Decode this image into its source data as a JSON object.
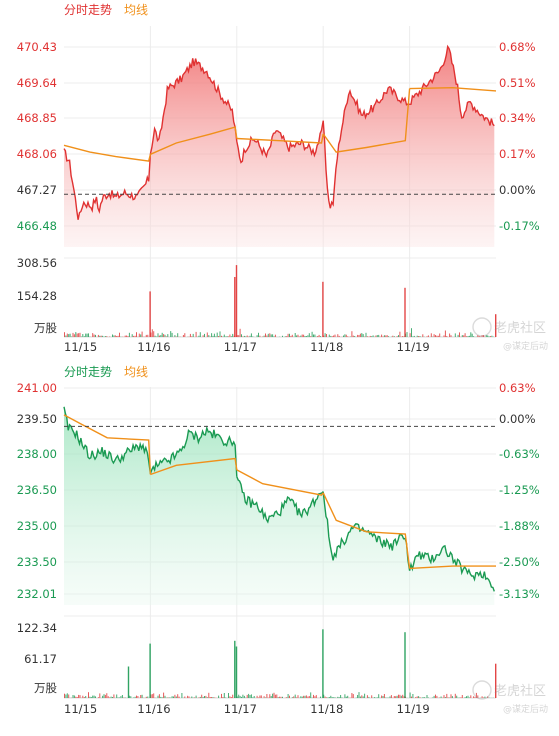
{
  "colors": {
    "up": "#e03232",
    "down": "#1a9a52",
    "avg": "#f0901a",
    "grid": "#ececec",
    "dash": "#444444",
    "text": "#333333"
  },
  "legend": {
    "price": "分时走势",
    "avg": "均线"
  },
  "vol_unit": "万股",
  "dates": [
    "11/15",
    "11/16",
    "11/17",
    "11/18",
    "11/19"
  ],
  "watermark": {
    "main": "老虎社区",
    "sub": "@谋定后动"
  },
  "chart_data": [
    {
      "type": "line",
      "trend": "up",
      "y_ticks_left": [
        "470.43",
        "469.64",
        "468.85",
        "468.06",
        "467.27",
        "466.48"
      ],
      "y_ticks_right": [
        "0.68%",
        "0.51%",
        "0.34%",
        "0.17%",
        "0.00%",
        "-0.17%"
      ],
      "vol_ticks": [
        "308.56",
        "154.28"
      ],
      "ylim": [
        466.48,
        470.43
      ],
      "base": 467.27,
      "x": [
        "11/15",
        "11/16",
        "11/17",
        "11/18",
        "11/19"
      ],
      "price_keypoints": [
        [
          0.0,
          468.2
        ],
        [
          0.06,
          468.0
        ],
        [
          0.12,
          467.3
        ],
        [
          0.17,
          466.7
        ],
        [
          0.22,
          467.1
        ],
        [
          0.33,
          467.0
        ],
        [
          0.37,
          467.2
        ],
        [
          0.4,
          466.9
        ],
        [
          0.45,
          467.2
        ],
        [
          0.52,
          467.3
        ],
        [
          0.6,
          467.2
        ],
        [
          0.7,
          467.3
        ],
        [
          0.85,
          467.2
        ],
        [
          0.98,
          467.6
        ],
        [
          1.0,
          468.2
        ],
        [
          1.05,
          468.7
        ],
        [
          1.1,
          468.4
        ],
        [
          1.2,
          469.6
        ],
        [
          1.35,
          469.8
        ],
        [
          1.5,
          470.2
        ],
        [
          1.65,
          470.0
        ],
        [
          1.8,
          469.5
        ],
        [
          1.95,
          469.1
        ],
        [
          2.0,
          468.4
        ],
        [
          2.05,
          468.0
        ],
        [
          2.1,
          468.3
        ],
        [
          2.2,
          468.5
        ],
        [
          2.35,
          468.1
        ],
        [
          2.45,
          468.7
        ],
        [
          2.6,
          468.3
        ],
        [
          2.75,
          468.4
        ],
        [
          2.9,
          468.2
        ],
        [
          2.98,
          468.6
        ],
        [
          3.0,
          468.9
        ],
        [
          3.03,
          467.9
        ],
        [
          3.07,
          467.0
        ],
        [
          3.12,
          467.1
        ],
        [
          3.15,
          467.9
        ],
        [
          3.2,
          468.6
        ],
        [
          3.3,
          469.6
        ],
        [
          3.45,
          469.0
        ],
        [
          3.6,
          469.2
        ],
        [
          3.75,
          469.6
        ],
        [
          3.95,
          469.3
        ],
        [
          4.0,
          469.3
        ],
        [
          4.1,
          469.5
        ],
        [
          4.25,
          469.8
        ],
        [
          4.35,
          470.0
        ],
        [
          4.45,
          470.5
        ],
        [
          4.55,
          469.7
        ],
        [
          4.6,
          469.0
        ],
        [
          4.7,
          469.3
        ],
        [
          4.85,
          469.0
        ],
        [
          4.98,
          468.8
        ]
      ],
      "avg_keypoints": [
        [
          0.0,
          468.35
        ],
        [
          0.3,
          468.2
        ],
        [
          0.6,
          468.1
        ],
        [
          0.98,
          468.0
        ],
        [
          1.0,
          468.15
        ],
        [
          1.3,
          468.4
        ],
        [
          1.7,
          468.6
        ],
        [
          1.98,
          468.75
        ],
        [
          2.0,
          468.5
        ],
        [
          2.5,
          468.45
        ],
        [
          2.98,
          468.4
        ],
        [
          3.0,
          468.6
        ],
        [
          3.15,
          468.2
        ],
        [
          3.5,
          468.3
        ],
        [
          3.95,
          468.45
        ],
        [
          4.0,
          469.6
        ],
        [
          4.5,
          469.62
        ],
        [
          5.0,
          469.55
        ]
      ],
      "vol_spikes": [
        [
          1.0,
          190
        ],
        [
          1.98,
          250
        ],
        [
          2.0,
          300
        ],
        [
          3.0,
          230
        ],
        [
          3.95,
          205
        ],
        [
          5.0,
          95
        ]
      ]
    },
    {
      "type": "line",
      "trend": "down",
      "y_ticks_left": [
        "241.00",
        "239.50",
        "238.00",
        "236.50",
        "235.00",
        "233.50",
        "232.01"
      ],
      "y_ticks_right": [
        "0.63%",
        "0.00%",
        "-0.63%",
        "-1.25%",
        "-1.88%",
        "-2.50%",
        "-3.13%"
      ],
      "vol_ticks": [
        "122.34",
        "61.17"
      ],
      "ylim": [
        232.01,
        241.0
      ],
      "base": 239.5,
      "x": [
        "11/15",
        "11/16",
        "11/17",
        "11/18",
        "11/19"
      ],
      "price_keypoints": [
        [
          0.0,
          240.2
        ],
        [
          0.05,
          239.4
        ],
        [
          0.12,
          239.3
        ],
        [
          0.2,
          238.8
        ],
        [
          0.3,
          238.2
        ],
        [
          0.45,
          238.4
        ],
        [
          0.6,
          238.0
        ],
        [
          0.75,
          238.4
        ],
        [
          0.9,
          238.7
        ],
        [
          0.98,
          238.1
        ],
        [
          1.0,
          237.4
        ],
        [
          1.05,
          237.7
        ],
        [
          1.15,
          237.9
        ],
        [
          1.25,
          238.1
        ],
        [
          1.35,
          238.4
        ],
        [
          1.45,
          239.2
        ],
        [
          1.55,
          239.0
        ],
        [
          1.65,
          239.3
        ],
        [
          1.75,
          239.1
        ],
        [
          1.9,
          238.8
        ],
        [
          1.98,
          238.9
        ],
        [
          2.0,
          237.2
        ],
        [
          2.1,
          236.3
        ],
        [
          2.25,
          236.0
        ],
        [
          2.35,
          235.4
        ],
        [
          2.5,
          235.8
        ],
        [
          2.6,
          236.3
        ],
        [
          2.75,
          235.6
        ],
        [
          2.85,
          236.0
        ],
        [
          2.98,
          236.7
        ],
        [
          3.0,
          236.7
        ],
        [
          3.05,
          235.2
        ],
        [
          3.1,
          233.8
        ],
        [
          3.2,
          234.3
        ],
        [
          3.35,
          235.1
        ],
        [
          3.5,
          234.9
        ],
        [
          3.65,
          234.5
        ],
        [
          3.8,
          234.3
        ],
        [
          3.95,
          234.8
        ],
        [
          4.0,
          233.2
        ],
        [
          4.1,
          233.9
        ],
        [
          4.25,
          233.7
        ],
        [
          4.4,
          234.2
        ],
        [
          4.55,
          233.5
        ],
        [
          4.7,
          233.0
        ],
        [
          4.85,
          233.1
        ],
        [
          4.98,
          232.5
        ]
      ],
      "avg_keypoints": [
        [
          0.0,
          240.0
        ],
        [
          0.2,
          239.6
        ],
        [
          0.5,
          239.0
        ],
        [
          0.98,
          238.9
        ],
        [
          1.0,
          237.4
        ],
        [
          1.3,
          237.8
        ],
        [
          1.98,
          238.1
        ],
        [
          2.0,
          237.6
        ],
        [
          2.3,
          237.0
        ],
        [
          2.98,
          236.5
        ],
        [
          3.0,
          236.6
        ],
        [
          3.15,
          235.4
        ],
        [
          3.5,
          234.9
        ],
        [
          3.95,
          234.8
        ],
        [
          4.0,
          233.3
        ],
        [
          4.5,
          233.4
        ],
        [
          5.0,
          233.4
        ]
      ],
      "vol_spikes": [
        [
          0.75,
          55
        ],
        [
          1.0,
          95
        ],
        [
          1.98,
          100
        ],
        [
          2.0,
          90
        ],
        [
          3.0,
          120
        ],
        [
          3.95,
          115
        ],
        [
          5.0,
          60
        ]
      ]
    }
  ]
}
